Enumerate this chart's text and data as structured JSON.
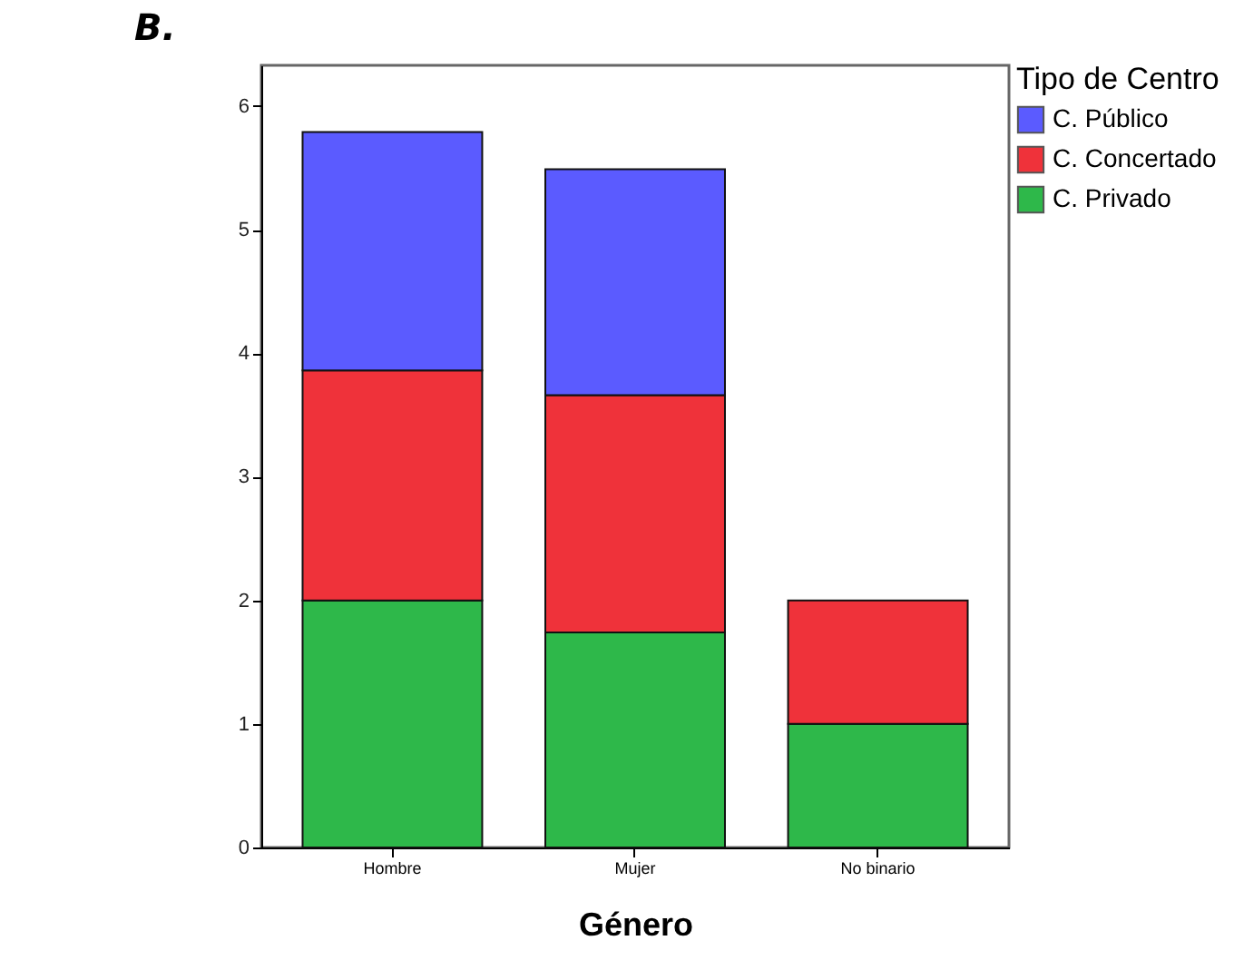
{
  "chart_data": {
    "type": "bar",
    "title": "B.",
    "xlabel": "Género",
    "legend_title": "Tipo de Centro",
    "categories": [
      "Hombre",
      "Mujer",
      "No binario"
    ],
    "stacked": true,
    "series": [
      {
        "name": "C. Privado",
        "color": "#2eb84a",
        "values": [
          2.0,
          1.74,
          1.0
        ]
      },
      {
        "name": "C. Concertado",
        "color": "#ef323a",
        "values": [
          1.86,
          1.92,
          1.0
        ]
      },
      {
        "name": "C. Público",
        "color": "#5b5bff",
        "values": [
          1.93,
          1.83,
          null
        ]
      }
    ],
    "ylim": [
      0,
      6.33
    ],
    "yticks": [
      0,
      1,
      2,
      3,
      4,
      5,
      6
    ],
    "grid": false,
    "legend": "top right"
  }
}
